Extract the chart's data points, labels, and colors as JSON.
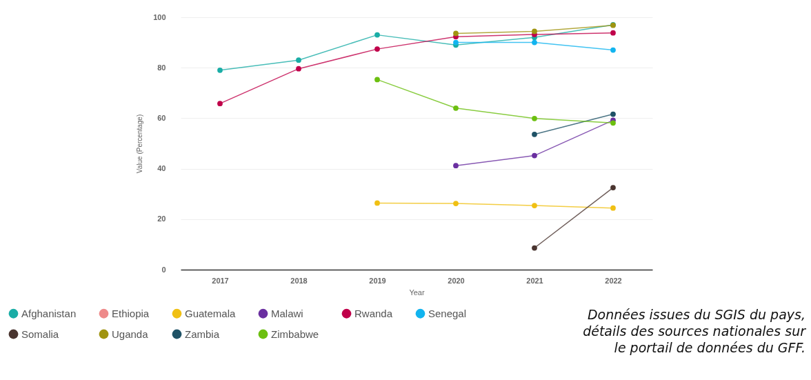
{
  "chart_data": {
    "type": "line",
    "xlabel": "Year",
    "ylabel": "Value (Percentage)",
    "categories": [
      "2017",
      "2018",
      "2019",
      "2020",
      "2021",
      "2022"
    ],
    "ylim": [
      0,
      100
    ],
    "yticks": [
      0,
      20,
      40,
      60,
      80,
      100
    ],
    "grid": "y",
    "legend": "bottom left",
    "marker": "circle",
    "series": [
      {
        "name": "Afghanistan",
        "color": "#1aada6",
        "values": [
          79,
          83,
          93,
          89,
          92,
          97
        ]
      },
      {
        "name": "Ethiopia",
        "color": "#ee8a8a",
        "values": [
          null,
          null,
          null,
          null,
          null,
          null
        ]
      },
      {
        "name": "Guatemala",
        "color": "#f0c014",
        "values": [
          null,
          null,
          26.4,
          26.2,
          25.4,
          24.4
        ]
      },
      {
        "name": "Malawi",
        "color": "#6a2fa0",
        "values": [
          null,
          null,
          null,
          41.2,
          45.2,
          59.2
        ]
      },
      {
        "name": "Rwanda",
        "color": "#c0004a",
        "values": [
          65.8,
          79.6,
          87.4,
          92.3,
          93.2,
          93.8
        ]
      },
      {
        "name": "Senegal",
        "color": "#12b4ef",
        "values": [
          null,
          null,
          null,
          90,
          90,
          87
        ]
      },
      {
        "name": "Somalia",
        "color": "#4a3530",
        "values": [
          null,
          null,
          null,
          null,
          8.6,
          32.5
        ]
      },
      {
        "name": "Uganda",
        "color": "#a09410",
        "values": [
          null,
          null,
          null,
          93.6,
          94.4,
          96.8
        ]
      },
      {
        "name": "Zambia",
        "color": "#1f5266",
        "values": [
          null,
          null,
          null,
          null,
          53.6,
          61.6
        ]
      },
      {
        "name": "Zimbabwe",
        "color": "#6cbf10",
        "values": [
          null,
          null,
          75.3,
          64,
          59.9,
          58.1
        ]
      }
    ],
    "annotations": [
      "Données issues du SGIS du pays, détails des sources nationales sur le portail de données du GFF."
    ]
  }
}
